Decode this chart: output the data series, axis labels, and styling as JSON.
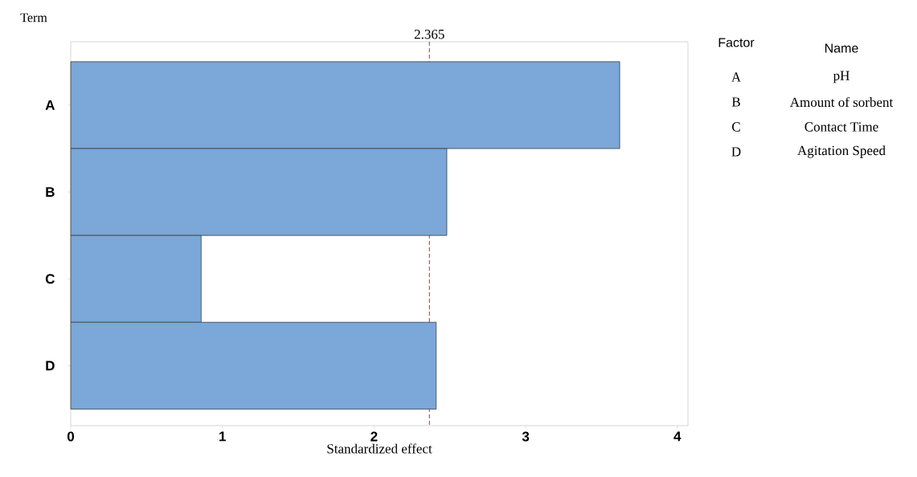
{
  "chart_data": {
    "type": "bar",
    "orientation": "horizontal",
    "ylabel": "Term",
    "xlabel": "Standardized effect",
    "categories": [
      "A",
      "B",
      "C",
      "D"
    ],
    "values": [
      3.62,
      2.48,
      0.86,
      2.41
    ],
    "color": "#7ba7d9",
    "xlim": [
      0,
      4.07
    ],
    "xticks": [
      0,
      1,
      2,
      3,
      4
    ],
    "ref_lines": [
      {
        "axis": "x",
        "value": 2.365,
        "label": "2.365",
        "color": "#cc2222",
        "line_style": "dashed"
      }
    ],
    "annotations": [
      "Factor",
      "Name",
      "A",
      "pH",
      "B",
      "Amount of sorbent",
      "C",
      "Contact Time",
      "D",
      "Agitation Speed"
    ]
  }
}
